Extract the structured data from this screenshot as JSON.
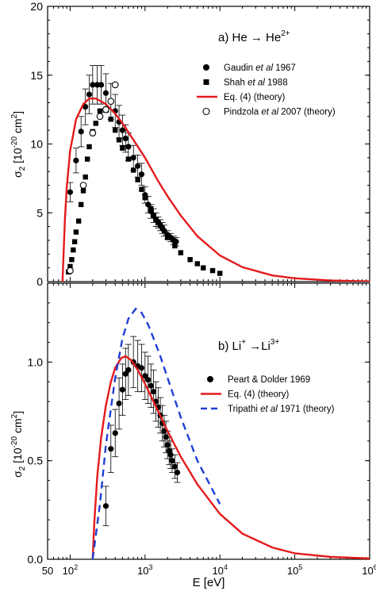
{
  "chart_data": [
    {
      "type": "scatter",
      "panel_label": "a) He → He",
      "panel_label_sup": "2+",
      "ylabel": "σ",
      "ylabel_sub": "2",
      "ylabel_unit": " [10",
      "ylabel_exp": "-20",
      "ylabel_tail": " cm",
      "ylabel_tail_sup": "2",
      "ylabel_close": "]",
      "xscale": "log",
      "xlim": [
        50,
        1000000
      ],
      "ylim": [
        0,
        20
      ],
      "y_ticks": [
        "0",
        "5",
        "10",
        "15",
        "20"
      ],
      "legend_position": "top-right",
      "series": [
        {
          "name_parts": [
            "Gaudin ",
            "et al",
            " 1967"
          ],
          "marker": "filled-circle",
          "color": "#000000",
          "points": [
            {
              "x": 100,
              "y": 6.5,
              "err": 0.7
            },
            {
              "x": 120,
              "y": 8.8,
              "err": 0.9
            },
            {
              "x": 140,
              "y": 10.9,
              "err": 1.1
            },
            {
              "x": 160,
              "y": 12.7,
              "err": 1.3
            },
            {
              "x": 180,
              "y": 13.6,
              "err": 1.4
            },
            {
              "x": 200,
              "y": 14.3,
              "err": 1.4
            },
            {
              "x": 230,
              "y": 14.3,
              "err": 1.4
            },
            {
              "x": 260,
              "y": 14.3,
              "err": 1.4
            },
            {
              "x": 300,
              "y": 13.7,
              "err": 1.4
            },
            {
              "x": 350,
              "y": 13.1,
              "err": 1.3
            },
            {
              "x": 400,
              "y": 12.4,
              "err": 1.2
            },
            {
              "x": 450,
              "y": 11.6,
              "err": 1.2
            },
            {
              "x": 500,
              "y": 11.0,
              "err": 1.1
            },
            {
              "x": 550,
              "y": 10.4,
              "err": 1.0
            },
            {
              "x": 600,
              "y": 9.8,
              "err": 1.0
            },
            {
              "x": 700,
              "y": 9.0,
              "err": 0.9
            },
            {
              "x": 800,
              "y": 8.4,
              "err": 0.8
            },
            {
              "x": 900,
              "y": 7.8,
              "err": 0.8
            },
            {
              "x": 1000,
              "y": 6.3,
              "err": 0.6
            },
            {
              "x": 1100,
              "y": 5.6,
              "err": 0.6
            },
            {
              "x": 1200,
              "y": 5.1,
              "err": 0.5
            },
            {
              "x": 1300,
              "y": 4.8,
              "err": 0.5
            },
            {
              "x": 1400,
              "y": 4.5,
              "err": 0.5
            },
            {
              "x": 1500,
              "y": 4.3,
              "err": 0.4
            },
            {
              "x": 1600,
              "y": 4.1,
              "err": 0.4
            },
            {
              "x": 1700,
              "y": 3.9,
              "err": 0.4
            },
            {
              "x": 1800,
              "y": 3.7,
              "err": 0.4
            },
            {
              "x": 2000,
              "y": 3.4,
              "err": 0.3
            },
            {
              "x": 2200,
              "y": 3.2,
              "err": 0.3
            },
            {
              "x": 2400,
              "y": 3.0,
              "err": 0.3
            },
            {
              "x": 2600,
              "y": 2.9,
              "err": 0.3
            }
          ]
        },
        {
          "name_parts": [
            "Shah ",
            "et al",
            " 1988"
          ],
          "marker": "filled-square",
          "color": "#000000",
          "points": [
            {
              "x": 95,
              "y": 0.7
            },
            {
              "x": 100,
              "y": 1.1
            },
            {
              "x": 105,
              "y": 1.6
            },
            {
              "x": 110,
              "y": 2.3
            },
            {
              "x": 115,
              "y": 2.9
            },
            {
              "x": 120,
              "y": 3.6
            },
            {
              "x": 130,
              "y": 4.4
            },
            {
              "x": 140,
              "y": 5.6
            },
            {
              "x": 150,
              "y": 6.6
            },
            {
              "x": 160,
              "y": 7.6
            },
            {
              "x": 170,
              "y": 8.9
            },
            {
              "x": 180,
              "y": 9.8
            },
            {
              "x": 200,
              "y": 10.9
            },
            {
              "x": 220,
              "y": 11.5
            },
            {
              "x": 250,
              "y": 12.4
            },
            {
              "x": 300,
              "y": 12.5
            },
            {
              "x": 350,
              "y": 11.8
            },
            {
              "x": 400,
              "y": 11.0
            },
            {
              "x": 450,
              "y": 10.3
            },
            {
              "x": 500,
              "y": 9.7
            },
            {
              "x": 600,
              "y": 8.9
            },
            {
              "x": 700,
              "y": 8.1
            },
            {
              "x": 800,
              "y": 7.4
            },
            {
              "x": 900,
              "y": 6.7
            },
            {
              "x": 1000,
              "y": 6.1
            },
            {
              "x": 1200,
              "y": 5.3
            },
            {
              "x": 1500,
              "y": 4.3
            },
            {
              "x": 2000,
              "y": 3.2
            },
            {
              "x": 2500,
              "y": 2.6
            },
            {
              "x": 3000,
              "y": 2.1
            },
            {
              "x": 4000,
              "y": 1.6
            },
            {
              "x": 5000,
              "y": 1.3
            },
            {
              "x": 6000,
              "y": 1.0
            },
            {
              "x": 8000,
              "y": 0.8
            },
            {
              "x": 10000,
              "y": 0.6
            }
          ]
        },
        {
          "name_parts": [
            "Eq. (4) (theory)"
          ],
          "marker": "line",
          "color": "#e41a1c",
          "points": [
            {
              "x": 79,
              "y": 0
            },
            {
              "x": 85,
              "y": 4.5
            },
            {
              "x": 90,
              "y": 6.8
            },
            {
              "x": 100,
              "y": 9.5
            },
            {
              "x": 120,
              "y": 11.8
            },
            {
              "x": 150,
              "y": 12.9
            },
            {
              "x": 180,
              "y": 13.3
            },
            {
              "x": 220,
              "y": 13.3
            },
            {
              "x": 300,
              "y": 12.9
            },
            {
              "x": 400,
              "y": 12.2
            },
            {
              "x": 500,
              "y": 11.5
            },
            {
              "x": 700,
              "y": 10.3
            },
            {
              "x": 1000,
              "y": 9.0
            },
            {
              "x": 1500,
              "y": 7.3
            },
            {
              "x": 2000,
              "y": 6.2
            },
            {
              "x": 3000,
              "y": 4.8
            },
            {
              "x": 5000,
              "y": 3.3
            },
            {
              "x": 10000,
              "y": 1.9
            },
            {
              "x": 20000,
              "y": 1.05
            },
            {
              "x": 50000,
              "y": 0.45
            },
            {
              "x": 100000,
              "y": 0.24
            },
            {
              "x": 300000,
              "y": 0.08
            },
            {
              "x": 1000000,
              "y": 0.02
            }
          ]
        },
        {
          "name_parts": [
            "Pindzola ",
            "et al",
            " 2007 (theory)"
          ],
          "marker": "open-circle",
          "color": "#000000",
          "points": [
            {
              "x": 100,
              "y": 0.8
            },
            {
              "x": 150,
              "y": 7.0
            },
            {
              "x": 200,
              "y": 10.8
            },
            {
              "x": 250,
              "y": 12.0
            },
            {
              "x": 300,
              "y": 12.5
            },
            {
              "x": 350,
              "y": 13.1
            },
            {
              "x": 400,
              "y": 14.3
            }
          ]
        }
      ]
    },
    {
      "type": "scatter",
      "panel_label": "b) Li",
      "panel_label_sup1": "+",
      "panel_label_mid": " →Li",
      "panel_label_sup2": "3+",
      "ylabel": "σ",
      "ylabel_sub": "2",
      "ylabel_unit": " [10",
      "ylabel_exp": "-20",
      "ylabel_tail": " cm",
      "ylabel_tail_sup": "2",
      "ylabel_close": "]",
      "xlabel": "E [eV]",
      "xscale": "log",
      "xlim": [
        50,
        1000000
      ],
      "ylim": [
        0,
        1.4
      ],
      "x_ticks": [
        {
          "base": "50",
          "exp": ""
        },
        {
          "base": "10",
          "exp": "2"
        },
        {
          "base": "10",
          "exp": "3"
        },
        {
          "base": "10",
          "exp": "4"
        },
        {
          "base": "10",
          "exp": "5"
        },
        {
          "base": "10",
          "exp": "6"
        }
      ],
      "y_ticks": [
        "0.0",
        "0.5",
        "1.0"
      ],
      "legend_position": "center-right",
      "series": [
        {
          "name_parts": [
            "Peart & Dolder 1969"
          ],
          "marker": "filled-circle",
          "color": "#000000",
          "points": [
            {
              "x": 300,
              "y": 0.27,
              "err": 0.1
            },
            {
              "x": 350,
              "y": 0.56,
              "err": 0.12
            },
            {
              "x": 400,
              "y": 0.64,
              "err": 0.12
            },
            {
              "x": 450,
              "y": 0.79,
              "err": 0.13
            },
            {
              "x": 500,
              "y": 0.86,
              "err": 0.13
            },
            {
              "x": 550,
              "y": 0.94,
              "err": 0.13
            },
            {
              "x": 600,
              "y": 0.96,
              "err": 0.13
            },
            {
              "x": 700,
              "y": 1.0,
              "err": 0.13
            },
            {
              "x": 800,
              "y": 0.98,
              "err": 0.13
            },
            {
              "x": 900,
              "y": 0.97,
              "err": 0.12
            },
            {
              "x": 1000,
              "y": 0.93,
              "err": 0.12
            },
            {
              "x": 1100,
              "y": 0.91,
              "err": 0.12
            },
            {
              "x": 1200,
              "y": 0.88,
              "err": 0.11
            },
            {
              "x": 1300,
              "y": 0.85,
              "err": 0.11
            },
            {
              "x": 1400,
              "y": 0.8,
              "err": 0.1
            },
            {
              "x": 1500,
              "y": 0.77,
              "err": 0.1
            },
            {
              "x": 1600,
              "y": 0.73,
              "err": 0.09
            },
            {
              "x": 1700,
              "y": 0.69,
              "err": 0.09
            },
            {
              "x": 1800,
              "y": 0.65,
              "err": 0.08
            },
            {
              "x": 1900,
              "y": 0.62,
              "err": 0.08
            },
            {
              "x": 2000,
              "y": 0.58,
              "err": 0.07
            },
            {
              "x": 2100,
              "y": 0.55,
              "err": 0.07
            },
            {
              "x": 2200,
              "y": 0.53,
              "err": 0.07
            },
            {
              "x": 2300,
              "y": 0.5,
              "err": 0.06
            },
            {
              "x": 2500,
              "y": 0.47,
              "err": 0.06
            },
            {
              "x": 2700,
              "y": 0.44,
              "err": 0.05
            }
          ]
        },
        {
          "name_parts": [
            "Eq. (4) (theory)"
          ],
          "marker": "line",
          "color": "#e41a1c",
          "points": [
            {
              "x": 200,
              "y": 0
            },
            {
              "x": 210,
              "y": 0.18
            },
            {
              "x": 230,
              "y": 0.42
            },
            {
              "x": 260,
              "y": 0.62
            },
            {
              "x": 300,
              "y": 0.78
            },
            {
              "x": 350,
              "y": 0.9
            },
            {
              "x": 400,
              "y": 0.97
            },
            {
              "x": 480,
              "y": 1.02
            },
            {
              "x": 550,
              "y": 1.03
            },
            {
              "x": 650,
              "y": 1.01
            },
            {
              "x": 800,
              "y": 0.96
            },
            {
              "x": 1000,
              "y": 0.89
            },
            {
              "x": 1500,
              "y": 0.75
            },
            {
              "x": 2000,
              "y": 0.65
            },
            {
              "x": 3000,
              "y": 0.52
            },
            {
              "x": 5000,
              "y": 0.38
            },
            {
              "x": 10000,
              "y": 0.23
            },
            {
              "x": 20000,
              "y": 0.13
            },
            {
              "x": 50000,
              "y": 0.06
            },
            {
              "x": 100000,
              "y": 0.03
            },
            {
              "x": 300000,
              "y": 0.012
            },
            {
              "x": 1000000,
              "y": 0.004
            }
          ]
        },
        {
          "name_parts": [
            "Tripathi ",
            "et al",
            " 1971 (theory)"
          ],
          "marker": "dashed-line",
          "color": "#1f3fd6",
          "points": [
            {
              "x": 200,
              "y": 0
            },
            {
              "x": 250,
              "y": 0.28
            },
            {
              "x": 300,
              "y": 0.58
            },
            {
              "x": 400,
              "y": 0.92
            },
            {
              "x": 500,
              "y": 1.12
            },
            {
              "x": 600,
              "y": 1.22
            },
            {
              "x": 750,
              "y": 1.27
            },
            {
              "x": 900,
              "y": 1.25
            },
            {
              "x": 1100,
              "y": 1.19
            },
            {
              "x": 1300,
              "y": 1.12
            },
            {
              "x": 1600,
              "y": 1.03
            },
            {
              "x": 2000,
              "y": 0.92
            },
            {
              "x": 3000,
              "y": 0.72
            },
            {
              "x": 5000,
              "y": 0.5
            },
            {
              "x": 10000,
              "y": 0.28
            }
          ]
        }
      ]
    }
  ]
}
